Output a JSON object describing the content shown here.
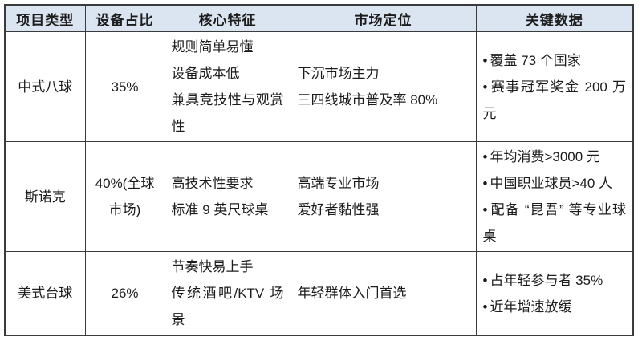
{
  "colors": {
    "header_bg": "#dbe5f1",
    "border": "#3b3b3b",
    "text": "#1c1c1c"
  },
  "table": {
    "bullet_char": "•",
    "columns": [
      "项目类型",
      "设备占比",
      "核心特征",
      "市场定位",
      "关键数据"
    ],
    "rows": [
      {
        "type": "中式八球",
        "share": "35%",
        "features": [
          "规则简单易懂",
          "设备成本低",
          "兼具竞技性与观赏性"
        ],
        "positioning": [
          "下沉市场主力",
          "三四线城市普及率 80%"
        ],
        "key_data": [
          "覆盖 73 个国家",
          "赛事冠军奖金 200 万元"
        ]
      },
      {
        "type": "斯诺克",
        "share": "40%(全球市场)",
        "features": [
          "高技术性要求",
          "标准 9 英尺球桌"
        ],
        "positioning": [
          "高端专业市场",
          "爱好者黏性强"
        ],
        "key_data": [
          "年均消费>3000 元",
          "中国职业球员>40 人",
          "配备 “昆吾” 等专业球桌"
        ]
      },
      {
        "type": "美式台球",
        "share": "26%",
        "features": [
          "节奏快易上手",
          "传统酒吧/KTV 场景"
        ],
        "positioning": [
          "年轻群体入门首选"
        ],
        "key_data": [
          "占年轻参与者 35%",
          "近年增速放缓"
        ]
      }
    ]
  }
}
